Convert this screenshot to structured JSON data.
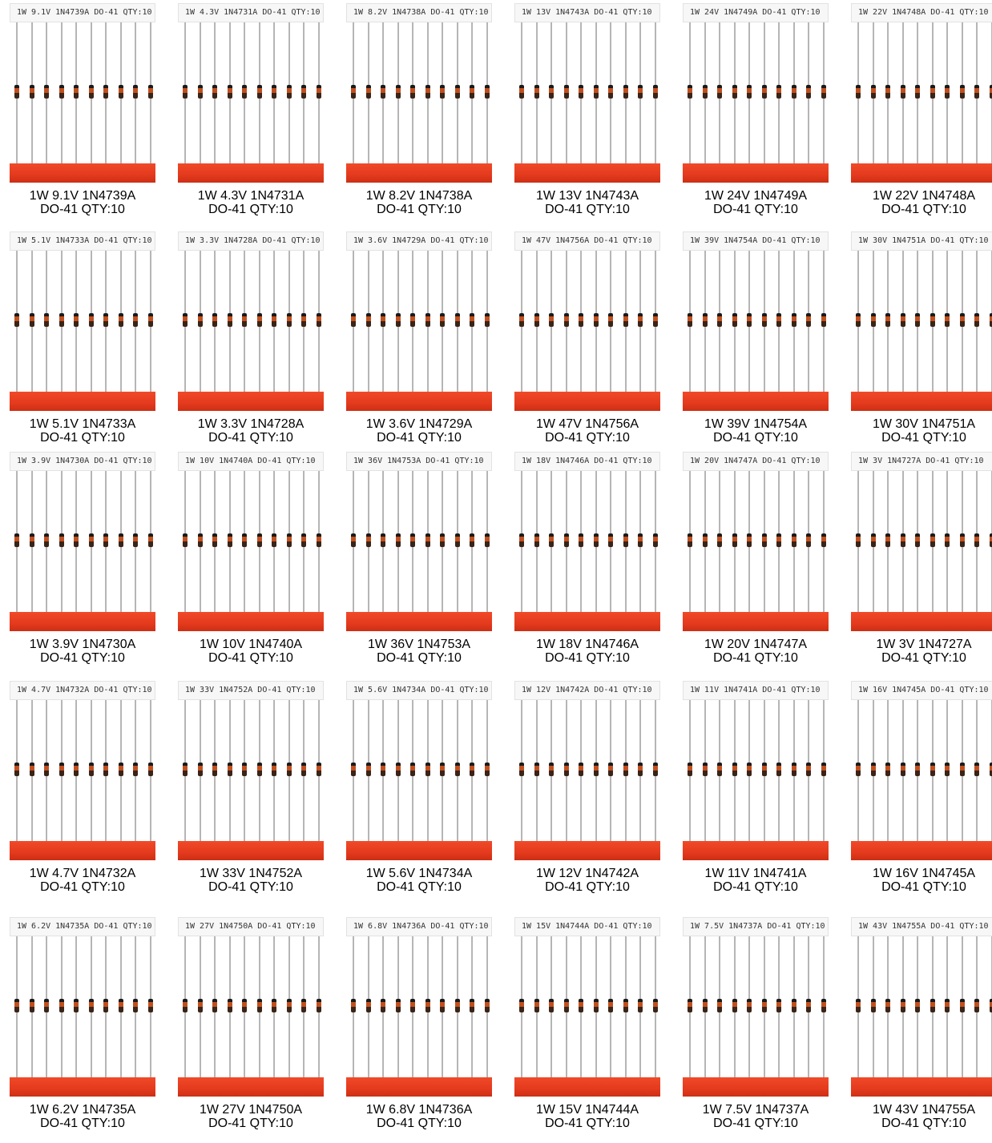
{
  "colors": {
    "tape": "#e43a1d",
    "lead": "#bdbdbd",
    "diode_body": "#c0501f",
    "label_band": "#f7f7f7"
  },
  "items": [
    {
      "tape_label": "1W 9.1V 1N4739A DO-41 QTY:10",
      "title": "1W 9.1V 1N4739A",
      "subtitle": "DO-41 QTY:10"
    },
    {
      "tape_label": "1W 4.3V 1N4731A DO-41 QTY:10",
      "title": "1W 4.3V 1N4731A",
      "subtitle": "DO-41 QTY:10"
    },
    {
      "tape_label": "1W 8.2V 1N4738A DO-41 QTY:10",
      "title": "1W 8.2V 1N4738A",
      "subtitle": "DO-41 QTY:10"
    },
    {
      "tape_label": "1W 13V 1N4743A DO-41 QTY:10",
      "title": "1W 13V 1N4743A",
      "subtitle": "DO-41 QTY:10"
    },
    {
      "tape_label": "1W 24V 1N4749A DO-41 QTY:10",
      "title": "1W 24V 1N4749A",
      "subtitle": "DO-41 QTY:10"
    },
    {
      "tape_label": "1W 22V 1N4748A DO-41 QTY:10",
      "title": "1W 22V 1N4748A",
      "subtitle": "DO-41 QTY:10"
    },
    {
      "tape_label": "1W 5.1V 1N4733A DO-41 QTY:10",
      "title": "1W 5.1V 1N4733A",
      "subtitle": "DO-41 QTY:10"
    },
    {
      "tape_label": "1W 3.3V 1N4728A DO-41 QTY:10",
      "title": "1W 3.3V 1N4728A",
      "subtitle": "DO-41 QTY:10"
    },
    {
      "tape_label": "1W 3.6V 1N4729A DO-41 QTY:10",
      "title": "1W 3.6V 1N4729A",
      "subtitle": "DO-41 QTY:10"
    },
    {
      "tape_label": "1W 47V 1N4756A DO-41 QTY:10",
      "title": "1W 47V 1N4756A",
      "subtitle": "DO-41 QTY:10"
    },
    {
      "tape_label": "1W 39V 1N4754A DO-41 QTY:10",
      "title": "1W 39V 1N4754A",
      "subtitle": "DO-41 QTY:10"
    },
    {
      "tape_label": "1W 30V 1N4751A DO-41 QTY:10",
      "title": "1W 30V 1N4751A",
      "subtitle": "DO-41 QTY:10"
    },
    {
      "tape_label": "1W 3.9V 1N4730A DO-41 QTY:10",
      "title": "1W 3.9V 1N4730A",
      "subtitle": "DO-41 QTY:10"
    },
    {
      "tape_label": "1W 10V 1N4740A DO-41 QTY:10",
      "title": "1W 10V 1N4740A",
      "subtitle": "DO-41 QTY:10"
    },
    {
      "tape_label": "1W 36V 1N4753A DO-41 QTY:10",
      "title": "1W 36V 1N4753A",
      "subtitle": "DO-41 QTY:10"
    },
    {
      "tape_label": "1W 18V 1N4746A DO-41 QTY:10",
      "title": "1W 18V 1N4746A",
      "subtitle": "DO-41 QTY:10"
    },
    {
      "tape_label": "1W 20V 1N4747A DO-41 QTY:10",
      "title": "1W 20V 1N4747A",
      "subtitle": "DO-41 QTY:10"
    },
    {
      "tape_label": "1W 3V 1N4727A DO-41 QTY:10",
      "title": "1W 3V 1N4727A",
      "subtitle": "DO-41 QTY:10"
    },
    {
      "tape_label": "1W 4.7V 1N4732A DO-41 QTY:10",
      "title": "1W 4.7V 1N4732A",
      "subtitle": "DO-41 QTY:10"
    },
    {
      "tape_label": "1W 33V 1N4752A DO-41 QTY:10",
      "title": "1W 33V 1N4752A",
      "subtitle": "DO-41 QTY:10"
    },
    {
      "tape_label": "1W 5.6V 1N4734A DO-41 QTY:10",
      "title": "1W 5.6V 1N4734A",
      "subtitle": "DO-41 QTY:10"
    },
    {
      "tape_label": "1W 12V 1N4742A DO-41 QTY:10",
      "title": "1W 12V 1N4742A",
      "subtitle": "DO-41 QTY:10"
    },
    {
      "tape_label": "1W 11V 1N4741A DO-41 QTY:10",
      "title": "1W 11V 1N4741A",
      "subtitle": "DO-41 QTY:10"
    },
    {
      "tape_label": "1W 16V 1N4745A DO-41 QTY:10",
      "title": "1W 16V 1N4745A",
      "subtitle": "DO-41 QTY:10"
    },
    {
      "tape_label": "1W 6.2V 1N4735A DO-41 QTY:10",
      "title": "1W 6.2V 1N4735A",
      "subtitle": "DO-41 QTY:10"
    },
    {
      "tape_label": "1W 27V 1N4750A DO-41 QTY:10",
      "title": "1W 27V 1N4750A",
      "subtitle": "DO-41 QTY:10"
    },
    {
      "tape_label": "1W 6.8V 1N4736A DO-41 QTY:10",
      "title": "1W 6.8V 1N4736A",
      "subtitle": "DO-41 QTY:10"
    },
    {
      "tape_label": "1W 15V 1N4744A DO-41 QTY:10",
      "title": "1W 15V 1N4744A",
      "subtitle": "DO-41 QTY:10"
    },
    {
      "tape_label": "1W 7.5V 1N4737A DO-41 QTY:10",
      "title": "1W 7.5V 1N4737A",
      "subtitle": "DO-41 QTY:10"
    },
    {
      "tape_label": "1W 43V 1N4755A DO-41 QTY:10",
      "title": "1W 43V 1N4755A",
      "subtitle": "DO-41 QTY:10"
    }
  ]
}
